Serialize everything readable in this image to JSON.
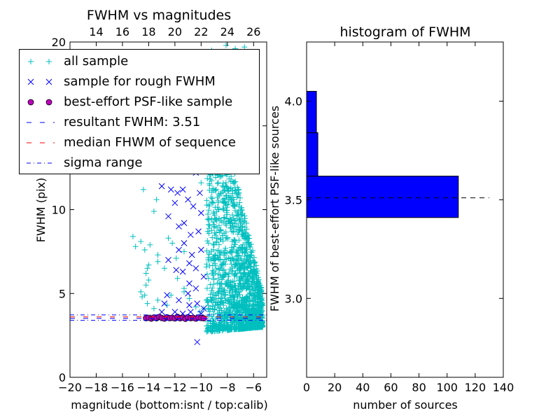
{
  "chart_data": [
    {
      "type": "scatter",
      "title": "FWHM vs magnitudes",
      "xlabel": "magnitude (bottom:isnt / top:calib)",
      "ylabel": "FWHM (pix)",
      "xlim": [
        -20,
        -5
      ],
      "ylim": [
        0,
        20
      ],
      "x_ticks": [
        "−20",
        "−18",
        "−16",
        "−14",
        "−12",
        "−10",
        "−8",
        "−6"
      ],
      "x_tick_values": [
        -20,
        -18,
        -16,
        -14,
        -12,
        -10,
        -8,
        -6
      ],
      "y_ticks": [
        "0",
        "5",
        "10",
        "15",
        "20"
      ],
      "y_tick_values": [
        0,
        5,
        10,
        15,
        20
      ],
      "top_ticks": [
        "14",
        "16",
        "18",
        "20",
        "22",
        "24",
        "26"
      ],
      "top_tick_values": [
        14,
        16,
        18,
        20,
        22,
        24,
        26
      ],
      "top_offset": 32,
      "legend": {
        "placement": "top-left",
        "entries": [
          "all sample",
          "sample for rough FWHM",
          "best-effort PSF-like sample",
          "resultant FWHM: 3.51",
          "median FHWM of sequence",
          "sigma range"
        ]
      },
      "series": [
        {
          "name": "all sample",
          "marker": "plus",
          "color": "#00bfbf",
          "points": [
            [
              -9.2,
              19.5
            ],
            [
              -8.6,
              19.0
            ],
            [
              -8.1,
              19.8
            ],
            [
              -7.9,
              18.2
            ],
            [
              -7.4,
              19.6
            ],
            [
              -7.0,
              18.9
            ],
            [
              -6.7,
              19.7
            ],
            [
              -11.0,
              19.2
            ],
            [
              -10.4,
              18.6
            ],
            [
              -14.4,
              11.2
            ],
            [
              -13.6,
              9.9
            ],
            [
              -13.4,
              10.6
            ],
            [
              -15.2,
              8.4
            ],
            [
              -15.0,
              7.8
            ],
            [
              -14.6,
              8.1
            ],
            [
              -14.3,
              7.6
            ],
            [
              -13.9,
              7.9
            ],
            [
              -13.3,
              7.3
            ],
            [
              -12.5,
              8.3
            ],
            [
              -12.2,
              8.0
            ],
            [
              -11.3,
              7.5
            ],
            [
              -11.9,
              7.1
            ],
            [
              -14.0,
              6.7
            ],
            [
              -13.3,
              6.9
            ],
            [
              -12.8,
              6.5
            ],
            [
              -11.8,
              5.9
            ],
            [
              -11.3,
              5.1
            ],
            [
              -14.1,
              6.5
            ],
            [
              -14.2,
              6.2
            ],
            [
              -14.0,
              5.8
            ],
            [
              -14.2,
              5.5
            ],
            [
              -14.6,
              5.1
            ],
            [
              -14.5,
              4.8
            ],
            [
              -14.3,
              4.9
            ],
            [
              -14.1,
              4.4
            ],
            [
              -13.3,
              4.6
            ],
            [
              -12.3,
              4.9
            ],
            [
              -11.3,
              5.3
            ],
            [
              -10.9,
              4.7
            ],
            [
              -10.4,
              4.2
            ],
            [
              -10.1,
              3.9
            ],
            [
              -9.8,
              4.1
            ],
            [
              -9.6,
              4.6
            ],
            [
              -12.6,
              4.3
            ],
            [
              -13.6,
              4.1
            ],
            [
              -9.8,
              14.8
            ],
            [
              -9.6,
              16.0
            ],
            [
              -9.8,
              12.5
            ],
            [
              -10.0,
              11.6
            ]
          ]
        },
        {
          "name": "sample for rough FWHM",
          "marker": "x",
          "color": "#0000ff",
          "points": [
            [
              -13.0,
              11.4
            ],
            [
              -12.3,
              11.2
            ],
            [
              -11.8,
              11.0
            ],
            [
              -11.4,
              11.2
            ],
            [
              -11.0,
              10.6
            ],
            [
              -10.6,
              10.2
            ],
            [
              -12.0,
              10.4
            ],
            [
              -12.5,
              9.6
            ],
            [
              -11.7,
              9.0
            ],
            [
              -11.3,
              9.2
            ],
            [
              -10.8,
              8.5
            ],
            [
              -11.3,
              8.0
            ],
            [
              -11.7,
              7.6
            ],
            [
              -12.5,
              7.0
            ],
            [
              -10.7,
              7.3
            ],
            [
              -10.9,
              6.8
            ],
            [
              -11.9,
              6.4
            ],
            [
              -11.4,
              6.3
            ],
            [
              -10.9,
              5.6
            ],
            [
              -10.4,
              5.3
            ],
            [
              -11.0,
              5.0
            ],
            [
              -11.7,
              4.6
            ],
            [
              -12.6,
              4.9
            ],
            [
              -12.8,
              4.4
            ],
            [
              -10.9,
              4.3
            ],
            [
              -10.3,
              4.4
            ],
            [
              -9.8,
              4.1
            ],
            [
              -12.0,
              3.9
            ],
            [
              -13.0,
              3.9
            ],
            [
              -11.4,
              3.8
            ],
            [
              -10.8,
              3.9
            ],
            [
              -10.0,
              3.8
            ],
            [
              -10.3,
              2.1
            ],
            [
              -10.2,
              13.0
            ],
            [
              -10.4,
              12.2
            ],
            [
              -10.1,
              11.0
            ],
            [
              -10.0,
              9.8
            ],
            [
              -10.2,
              8.7
            ],
            [
              -10.0,
              7.6
            ],
            [
              -10.4,
              6.5
            ],
            [
              -9.8,
              6.0
            ]
          ]
        },
        {
          "name": "best-effort PSF-like sample",
          "marker": "circle",
          "color": "#bf00bf",
          "points": [
            [
              -14.2,
              3.53
            ],
            [
              -14.0,
              3.55
            ],
            [
              -13.8,
              3.5
            ],
            [
              -13.6,
              3.57
            ],
            [
              -13.4,
              3.52
            ],
            [
              -13.2,
              3.6
            ],
            [
              -13.0,
              3.54
            ],
            [
              -12.8,
              3.5
            ],
            [
              -12.6,
              3.58
            ],
            [
              -12.4,
              3.53
            ],
            [
              -12.2,
              3.55
            ],
            [
              -12.0,
              3.51
            ],
            [
              -11.8,
              3.6
            ],
            [
              -11.6,
              3.52
            ],
            [
              -11.4,
              3.56
            ],
            [
              -11.2,
              3.49
            ],
            [
              -11.0,
              3.58
            ],
            [
              -10.8,
              3.53
            ],
            [
              -10.6,
              3.55
            ],
            [
              -10.4,
              3.5
            ],
            [
              -10.2,
              3.57
            ],
            [
              -10.0,
              3.54
            ],
            [
              -9.8,
              3.52
            ]
          ]
        }
      ],
      "dense_cloud": {
        "name": "all sample (bright-end cloud)",
        "color": "#00bfbf",
        "x_range": [
          -9.6,
          -5.3
        ],
        "profile": "dense cloud, upper envelope falling from ~19 pix at -9.5 to ~5 pix at -5.5; lower envelope ~2.8-3.5 pix"
      },
      "lines": [
        {
          "name": "resultant FWHM: 3.51",
          "style": "dashed",
          "color": "#0000ff",
          "y": 3.51
        },
        {
          "name": "median FHWM of sequence",
          "style": "dashed",
          "color": "#ff0000",
          "y": 3.6
        },
        {
          "name": "sigma range",
          "style": "dashdot",
          "color": "#0000ff",
          "y": 3.4
        },
        {
          "name": "sigma range",
          "style": "dashdot",
          "color": "#0000ff",
          "y": 3.72
        }
      ]
    },
    {
      "type": "bar",
      "orientation": "horizontal",
      "title": "histogram of FWHM",
      "xlabel": "number of sources",
      "ylabel": "FWHM of best-effort PSF-like sources",
      "xlim": [
        0,
        140
      ],
      "ylim": [
        2.6,
        4.3
      ],
      "x_ticks": [
        "0",
        "20",
        "40",
        "60",
        "80",
        "100",
        "120",
        "140"
      ],
      "x_tick_values": [
        0,
        20,
        40,
        60,
        80,
        100,
        120,
        140
      ],
      "y_ticks": [
        "3.0",
        "3.5",
        "4.0"
      ],
      "y_tick_values": [
        3.0,
        3.5,
        4.0
      ],
      "bar_color": "#0000ff",
      "bins": [
        {
          "from": 3.41,
          "to": 3.62,
          "count": 108
        },
        {
          "from": 3.62,
          "to": 3.84,
          "count": 8
        },
        {
          "from": 3.84,
          "to": 4.05,
          "count": 7
        }
      ],
      "reference_line": {
        "style": "dashed",
        "color": "#000000",
        "y": 3.51,
        "x_range": [
          0,
          130
        ]
      }
    }
  ]
}
